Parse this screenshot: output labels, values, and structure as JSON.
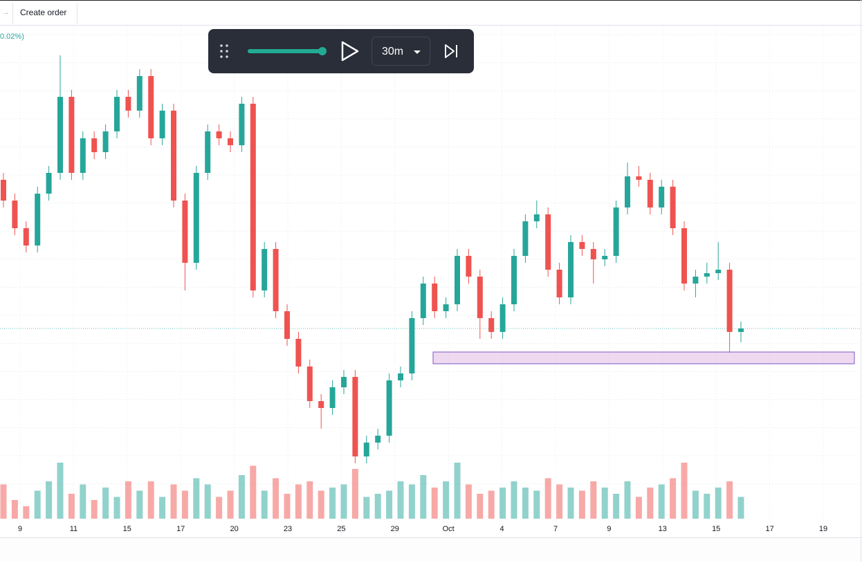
{
  "toolbar": {
    "create_order": "Create order"
  },
  "replay": {
    "interval": "30m"
  },
  "chart_data": {
    "type": "candlestick",
    "legend_text": "0.02%)",
    "open": [
      420,
      390,
      350,
      325,
      400,
      430,
      540,
      430,
      480,
      460,
      490,
      540,
      520,
      570,
      480,
      520,
      390,
      300,
      430,
      490,
      480,
      470,
      530,
      260,
      320,
      230,
      190,
      150,
      100,
      90,
      120,
      135,
      20,
      40,
      50,
      130,
      140,
      220,
      270,
      230,
      240,
      310,
      280,
      220,
      200,
      240,
      310,
      360,
      370,
      290,
      250,
      330,
      320,
      305,
      310,
      380,
      425,
      420,
      380,
      410,
      350,
      270,
      280,
      285,
      290,
      200
    ],
    "high": [
      430,
      400,
      360,
      410,
      440,
      600,
      550,
      490,
      490,
      500,
      550,
      550,
      580,
      580,
      530,
      530,
      400,
      440,
      500,
      500,
      490,
      540,
      540,
      330,
      330,
      240,
      200,
      160,
      110,
      130,
      145,
      145,
      50,
      60,
      140,
      150,
      230,
      280,
      280,
      250,
      320,
      320,
      290,
      230,
      250,
      320,
      370,
      390,
      380,
      300,
      340,
      340,
      330,
      320,
      390,
      445,
      440,
      430,
      420,
      420,
      360,
      290,
      300,
      330,
      300,
      215
    ],
    "low": [
      380,
      340,
      315,
      315,
      390,
      420,
      420,
      420,
      450,
      450,
      480,
      510,
      510,
      470,
      470,
      380,
      260,
      290,
      420,
      470,
      460,
      460,
      250,
      250,
      220,
      180,
      140,
      90,
      60,
      80,
      110,
      10,
      10,
      30,
      40,
      120,
      130,
      210,
      220,
      220,
      230,
      270,
      190,
      190,
      190,
      230,
      300,
      350,
      280,
      240,
      240,
      310,
      270,
      295,
      300,
      370,
      410,
      370,
      370,
      340,
      260,
      250,
      270,
      275,
      170,
      185
    ],
    "close": [
      390,
      350,
      325,
      400,
      430,
      540,
      430,
      480,
      460,
      490,
      540,
      520,
      570,
      480,
      520,
      390,
      300,
      430,
      490,
      480,
      470,
      530,
      260,
      320,
      230,
      190,
      150,
      100,
      90,
      120,
      135,
      20,
      40,
      50,
      130,
      140,
      220,
      270,
      230,
      240,
      310,
      280,
      220,
      200,
      240,
      310,
      360,
      370,
      290,
      250,
      330,
      320,
      305,
      310,
      380,
      425,
      420,
      380,
      410,
      350,
      270,
      280,
      285,
      290,
      200,
      205
    ],
    "volume": [
      55,
      30,
      20,
      45,
      60,
      90,
      40,
      55,
      30,
      50,
      35,
      60,
      45,
      60,
      35,
      55,
      45,
      65,
      55,
      35,
      45,
      70,
      85,
      45,
      65,
      40,
      55,
      60,
      45,
      50,
      55,
      80,
      35,
      40,
      45,
      60,
      55,
      70,
      50,
      60,
      90,
      55,
      40,
      45,
      50,
      60,
      50,
      45,
      65,
      55,
      50,
      45,
      60,
      50,
      40,
      60,
      35,
      50,
      55,
      65,
      90,
      45,
      40,
      50,
      60,
      35
    ],
    "ylim": [
      0,
      640
    ],
    "volume_lim": [
      0,
      100
    ],
    "up_color": "#26a69a",
    "down_color": "#ef5350",
    "zone": [
      154,
      171
    ],
    "time_labels": [
      "9",
      "11",
      "15",
      "17",
      "20",
      "23",
      "25",
      "29",
      "Oct",
      "4",
      "7",
      "9",
      "13",
      "15",
      "17",
      "19"
    ]
  }
}
